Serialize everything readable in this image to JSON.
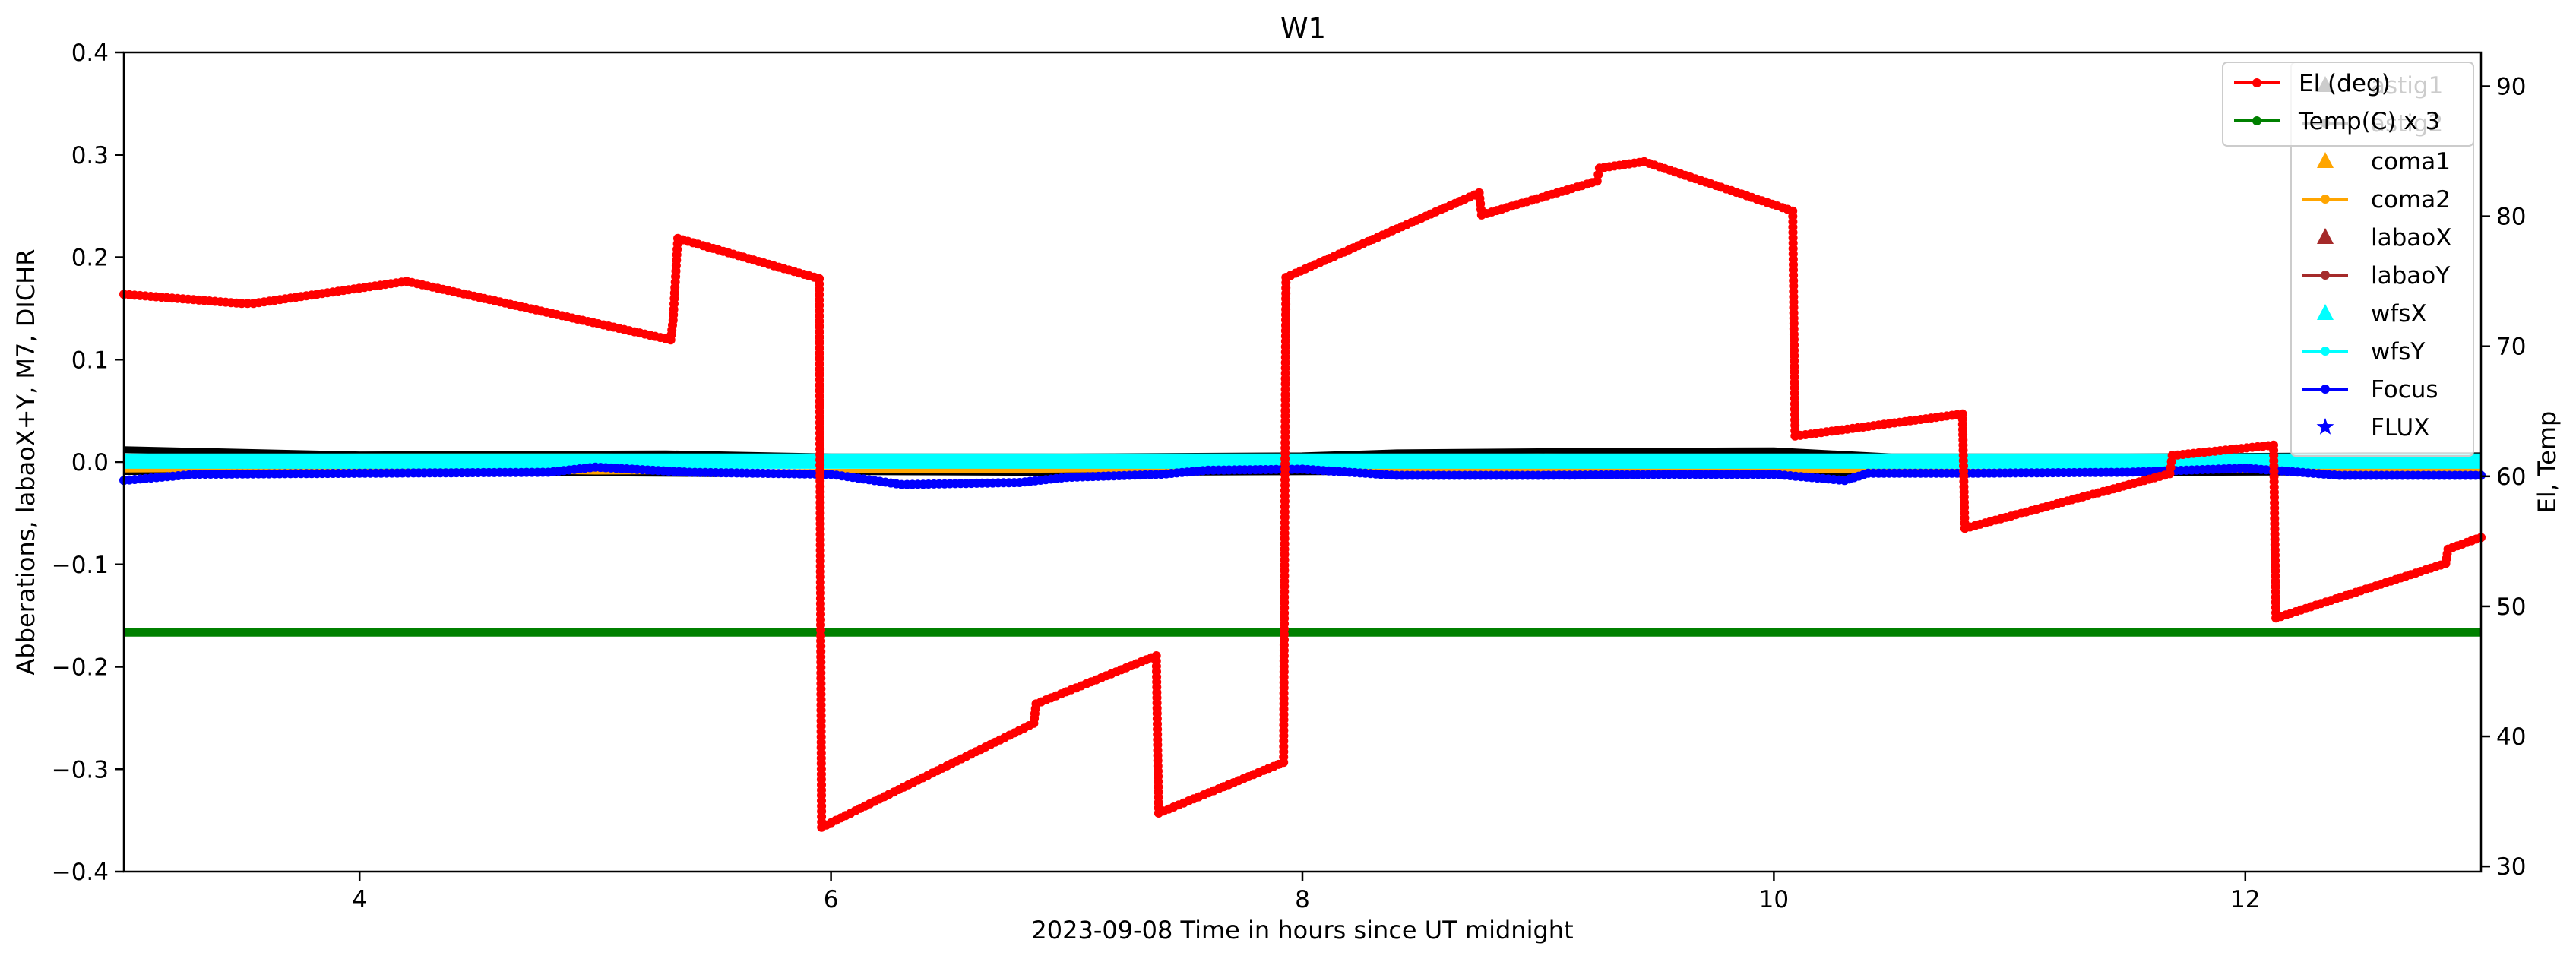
{
  "chart_data": {
    "type": "line",
    "title": "W1",
    "xlabel": "2023-09-08  Time in hours since UT midnight",
    "ylabel_left": "Abberations, labaoX+Y, M7, DICHR",
    "ylabel_right": "El, Temp",
    "xlim": [
      3.0,
      13.0
    ],
    "ylim_left": [
      -0.4,
      0.4
    ],
    "ylim_right": [
      29.6,
      92.6
    ],
    "x_ticks": [
      4,
      6,
      8,
      10,
      12
    ],
    "x_tick_labels": [
      "4",
      "6",
      "8",
      "10",
      "12"
    ],
    "y_left_ticks": [
      -0.4,
      -0.3,
      -0.2,
      -0.1,
      0.0,
      0.1,
      0.2,
      0.3,
      0.4
    ],
    "y_left_tick_labels": [
      "−0.4",
      "−0.3",
      "−0.2",
      "−0.1",
      "0.0",
      "0.1",
      "0.2",
      "0.3",
      "0.4"
    ],
    "y_right_ticks": [
      30,
      40,
      50,
      60,
      70,
      80,
      90
    ],
    "y_right_tick_labels": [
      "30",
      "40",
      "50",
      "60",
      "70",
      "80",
      "90"
    ],
    "grid": false,
    "legend_left_axis": {
      "placement": "upper-right",
      "entries": [
        {
          "label": "astig1",
          "color": "#000000",
          "marker": "triangle"
        },
        {
          "label": "astig2",
          "color": "#000000",
          "marker": "dot-line"
        },
        {
          "label": "coma1",
          "color": "#ffa500",
          "marker": "triangle"
        },
        {
          "label": "coma2",
          "color": "#ffa500",
          "marker": "dot-line"
        },
        {
          "label": "labaoX",
          "color": "#a52a2a",
          "marker": "triangle"
        },
        {
          "label": "labaoY",
          "color": "#a52a2a",
          "marker": "dot-line"
        },
        {
          "label": "wfsX",
          "color": "#00ffff",
          "marker": "triangle"
        },
        {
          "label": "wfsY",
          "color": "#00ffff",
          "marker": "dot-line"
        },
        {
          "label": "Focus",
          "color": "#0000ff",
          "marker": "dot-line"
        },
        {
          "label": "FLUX",
          "color": "#0000ff",
          "marker": "star"
        }
      ]
    },
    "legend_right_axis": {
      "placement": "upper-right",
      "entries": [
        {
          "label": "El (deg)",
          "color": "#ff0000",
          "marker": "dot-line"
        },
        {
          "label": "Temp(C) x 3",
          "color": "#008000",
          "marker": "dot-line"
        }
      ]
    },
    "series": [
      {
        "name": "El (deg)",
        "axis": "right",
        "color": "#ff0000",
        "x": [
          3.0,
          3.5,
          3.55,
          4.2,
          5.32,
          5.33,
          5.35,
          5.95,
          5.96,
          6.86,
          6.87,
          7.38,
          7.39,
          7.92,
          7.93,
          8.75,
          8.76,
          9.25,
          9.26,
          9.45,
          10.08,
          10.09,
          10.8,
          10.81,
          11.68,
          11.69,
          12.12,
          12.13,
          12.85,
          12.86,
          13.0
        ],
        "y": [
          74.0,
          73.3,
          73.3,
          75.0,
          70.5,
          72.0,
          78.3,
          75.2,
          33.0,
          41.0,
          42.5,
          46.2,
          34.1,
          38.0,
          75.3,
          81.8,
          80.1,
          82.7,
          83.7,
          84.2,
          80.4,
          63.1,
          64.8,
          56.0,
          60.2,
          61.6,
          62.4,
          49.1,
          53.3,
          54.4,
          55.3
        ]
      },
      {
        "name": "Temp(C) x 3",
        "axis": "right",
        "color": "#008000",
        "x": [
          3.0,
          13.0
        ],
        "y": [
          48.0,
          48.0
        ]
      },
      {
        "name": "Focus",
        "axis": "left",
        "color": "#0000ff",
        "x": [
          3.0,
          3.3,
          4.0,
          4.8,
          5.0,
          5.4,
          6.0,
          6.3,
          6.8,
          7.0,
          7.4,
          7.6,
          8.0,
          8.4,
          9.0,
          9.6,
          10.0,
          10.3,
          10.4,
          10.8,
          11.5,
          12.0,
          12.4,
          13.0
        ],
        "y": [
          -0.018,
          -0.012,
          -0.011,
          -0.01,
          -0.005,
          -0.01,
          -0.012,
          -0.022,
          -0.02,
          -0.015,
          -0.012,
          -0.008,
          -0.007,
          -0.013,
          -0.013,
          -0.012,
          -0.012,
          -0.018,
          -0.011,
          -0.011,
          -0.01,
          -0.006,
          -0.013,
          -0.013
        ]
      },
      {
        "name": "astig1",
        "axis": "left",
        "color": "#000000",
        "x": [
          3.0,
          4.0,
          5.3,
          6.0,
          7.0,
          8.0,
          8.4,
          9.0,
          10.0,
          10.5,
          11.5,
          12.5,
          13.0
        ],
        "y": [
          0.012,
          0.007,
          0.008,
          0.005,
          0.005,
          0.006,
          0.009,
          0.01,
          0.011,
          0.005,
          0.005,
          0.006,
          0.006
        ]
      },
      {
        "name": "astig2",
        "axis": "left",
        "color": "#000000",
        "x": [
          3.0,
          4.0,
          5.5,
          6.0,
          7.0,
          8.4,
          9.0,
          10.0,
          10.5,
          11.5,
          13.0
        ],
        "y": [
          -0.01,
          -0.01,
          -0.012,
          -0.01,
          -0.011,
          -0.01,
          -0.012,
          -0.013,
          -0.01,
          -0.011,
          -0.01
        ]
      },
      {
        "name": "coma1",
        "axis": "left",
        "color": "#ffa500",
        "x": [
          3.0,
          4.0,
          5.0,
          6.0,
          7.0,
          8.0,
          9.0,
          10.0,
          11.0,
          12.0,
          13.0
        ],
        "y": [
          0.005,
          0.006,
          0.006,
          0.005,
          0.006,
          0.005,
          0.006,
          0.005,
          0.006,
          0.005,
          0.005
        ]
      },
      {
        "name": "coma2",
        "axis": "left",
        "color": "#ffa500",
        "x": [
          3.0,
          4.0,
          5.0,
          6.0,
          7.0,
          8.0,
          9.0,
          10.0,
          11.0,
          12.0,
          13.0
        ],
        "y": [
          -0.008,
          -0.007,
          -0.01,
          -0.009,
          -0.008,
          -0.007,
          -0.008,
          -0.008,
          -0.009,
          -0.008,
          -0.008
        ]
      },
      {
        "name": "wfsX",
        "axis": "left",
        "color": "#00ffff",
        "x": [
          3.0,
          13.0
        ],
        "y": [
          0.001,
          0.001
        ]
      },
      {
        "name": "wfsY",
        "axis": "left",
        "color": "#00ffff",
        "x": [
          3.0,
          13.0
        ],
        "y": [
          -0.002,
          -0.002
        ]
      }
    ]
  }
}
